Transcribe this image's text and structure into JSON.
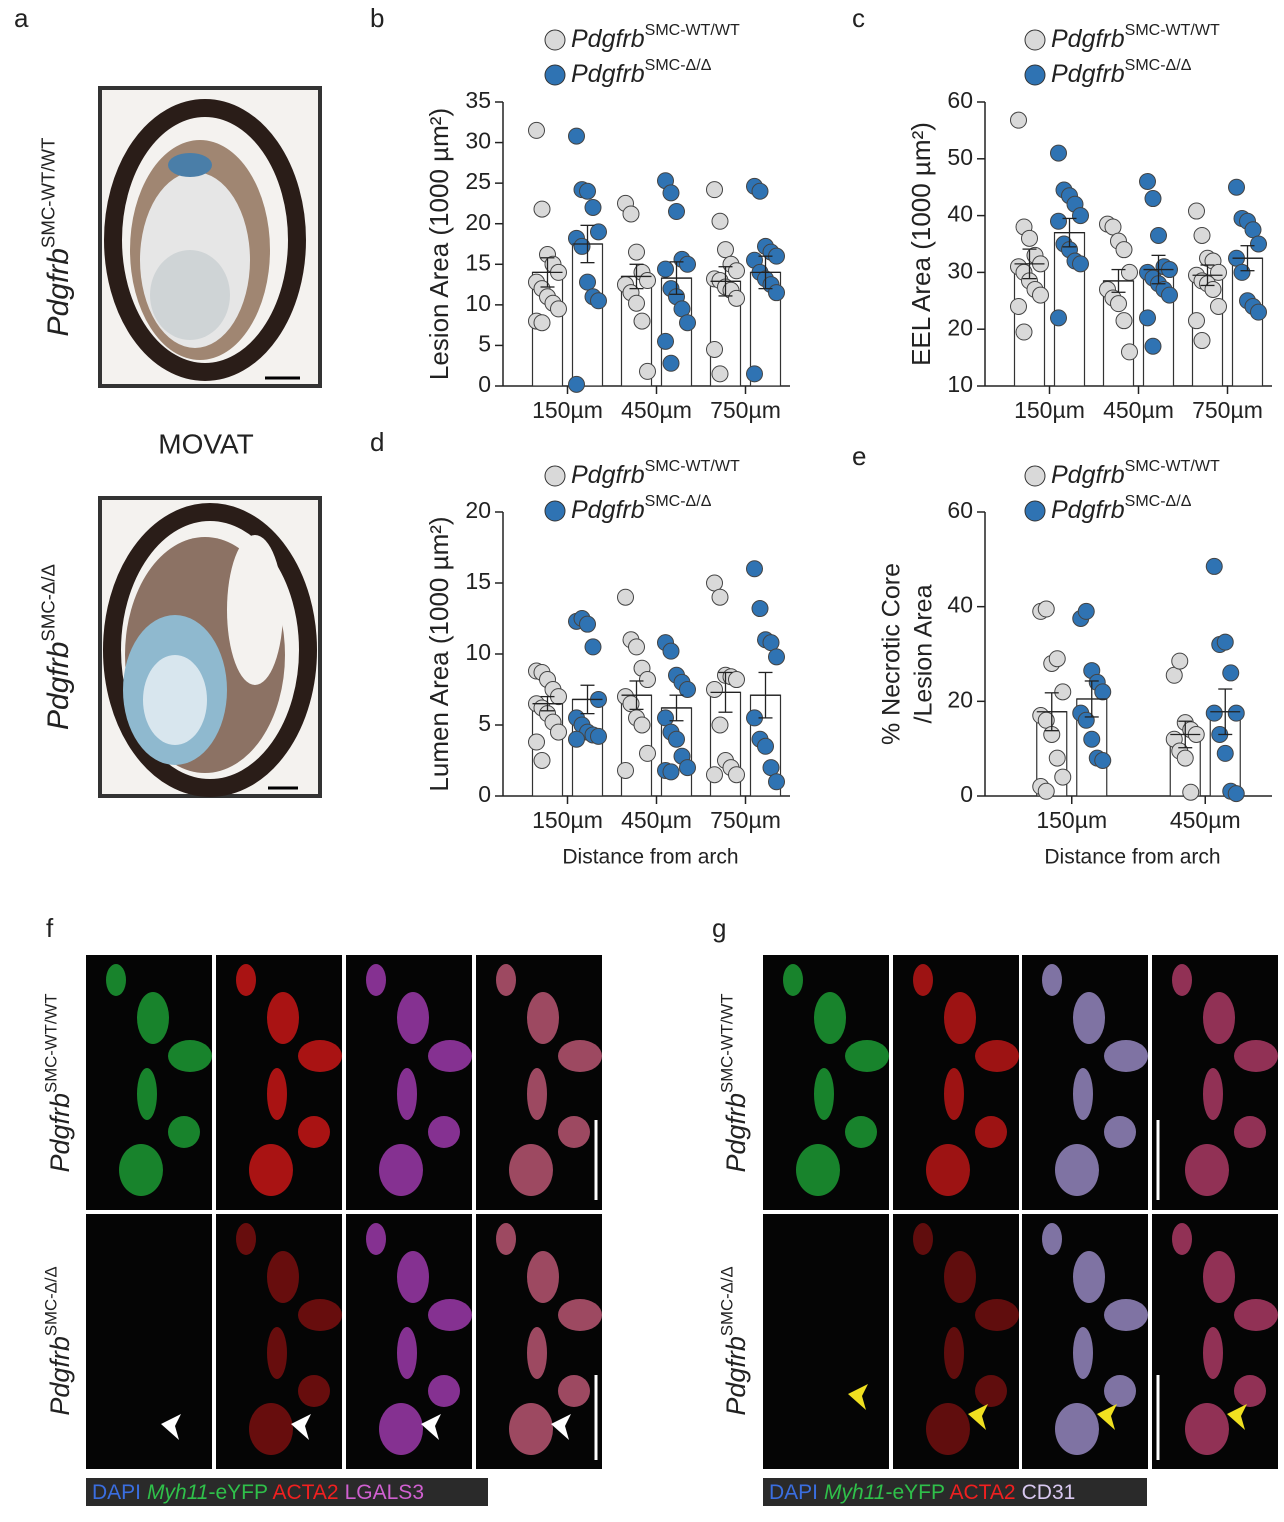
{
  "panel_labels": [
    "a",
    "b",
    "c",
    "d",
    "e",
    "f",
    "g"
  ],
  "genotype": {
    "gene": "Pdgfrb",
    "wt": "SMC-WT/WT",
    "ko": "SMC-Δ/Δ"
  },
  "movat": "MOVAT",
  "stains_f": [
    "DAPI",
    "Myh11",
    "-eYFP",
    "ACTA2",
    "LGALS3"
  ],
  "stains_g": [
    "DAPI",
    "Myh11",
    "-eYFP",
    "ACTA2",
    "CD31"
  ],
  "chart_data": [
    {
      "type": "bar",
      "ylabel": "Lesion Area (1000 µm²)",
      "categories": [
        "150µm",
        "450µm",
        "750µm"
      ],
      "ylim": [
        0,
        35
      ],
      "yticks": [
        0,
        5,
        10,
        15,
        20,
        25,
        30,
        35
      ],
      "series": [
        {
          "name": "Pdgfrb",
          "genotype": "SMC-WT/WT",
          "color": "#d9d9d9",
          "values": [
            14,
            13.5,
            12.9
          ],
          "errors": [
            1.8,
            1.5,
            1.8
          ],
          "points": [
            [
              31.5,
              21.8,
              16.2,
              15,
              14,
              12.8,
              12,
              11,
              10.2,
              9.5,
              8,
              7.8
            ],
            [
              22.5,
              21.2,
              16.5,
              14,
              13,
              12.5,
              11.5,
              10.2,
              8,
              1.8
            ],
            [
              24.2,
              20.3,
              16.8,
              15,
              14.2,
              13.2,
              13,
              12.2,
              11.8,
              10.8,
              4.5,
              1.5
            ]
          ]
        },
        {
          "name": "Pdgfrb",
          "genotype": "SMC-Δ/Δ",
          "color": "#2f73b3",
          "values": [
            17.5,
            13.3,
            14
          ],
          "errors": [
            2.3,
            2,
            2
          ],
          "points": [
            [
              30.8,
              24.2,
              24,
              22,
              19,
              18.2,
              17.2,
              12.8,
              11,
              10.5,
              0.2
            ],
            [
              25.3,
              23.8,
              21.5,
              15.6,
              15,
              14.4,
              12,
              11,
              9.5,
              7.8,
              5.5,
              2.8
            ],
            [
              24.6,
              24,
              17.2,
              16.5,
              16,
              15.5,
              14,
              13.2,
              12.5,
              11.5,
              1.5
            ]
          ]
        }
      ]
    },
    {
      "type": "bar",
      "ylabel": "EEL Area (1000 µm²)",
      "categories": [
        "150µm",
        "450µm",
        "750µm"
      ],
      "ylim": [
        10,
        60
      ],
      "yticks": [
        10,
        20,
        30,
        40,
        50,
        60
      ],
      "series": [
        {
          "name": "Pdgfrb",
          "genotype": "SMC-WT/WT",
          "color": "#d9d9d9",
          "values": [
            31.5,
            28.5,
            29.5
          ],
          "errors": [
            2.6,
            2,
            1.8
          ],
          "points": [
            [
              56.8,
              38,
              36,
              33,
              31.5,
              31,
              30,
              28.5,
              27,
              26,
              24,
              19.5
            ],
            [
              38.5,
              38,
              35.5,
              34,
              30,
              27,
              25.5,
              24.5,
              21.5,
              16
            ],
            [
              40.8,
              36.5,
              32.5,
              32,
              30,
              29.5,
              28.5,
              28,
              27,
              24,
              21.5,
              18
            ]
          ]
        },
        {
          "name": "Pdgfrb",
          "genotype": "SMC-Δ/Δ",
          "color": "#2f73b3",
          "values": [
            37,
            30.5,
            32.5
          ],
          "errors": [
            2.5,
            2.5,
            2.2
          ],
          "points": [
            [
              51,
              44.5,
              43.5,
              42,
              40,
              39,
              35,
              34,
              32,
              31.5,
              22
            ],
            [
              46,
              43,
              36.5,
              31,
              30.5,
              30,
              29,
              28,
              27,
              26,
              22,
              17
            ],
            [
              45,
              39.5,
              39,
              37.5,
              35,
              32.5,
              30,
              25,
              24,
              23
            ]
          ]
        }
      ]
    },
    {
      "type": "bar",
      "ylabel": "Lumen Area (1000 µm²)",
      "xlabel": "Distance from arch",
      "categories": [
        "150µm",
        "450µm",
        "750µm"
      ],
      "ylim": [
        0,
        20
      ],
      "yticks": [
        0,
        5,
        10,
        15,
        20
      ],
      "series": [
        {
          "name": "Pdgfrb",
          "genotype": "SMC-WT/WT",
          "color": "#d9d9d9",
          "values": [
            6.5,
            7.1,
            7.3
          ],
          "errors": [
            0.5,
            1,
            1.4
          ],
          "points": [
            [
              8.8,
              8.7,
              8.2,
              7.5,
              7,
              6.5,
              6.2,
              5.8,
              5.2,
              4.5,
              3.8,
              2.5
            ],
            [
              14,
              11,
              10.5,
              9,
              8.2,
              7,
              6.5,
              5.5,
              5,
              3,
              1.8
            ],
            [
              15,
              14,
              8.5,
              8.4,
              8.2,
              7.5,
              5,
              2.5,
              2,
              1.5,
              1.5
            ]
          ]
        },
        {
          "name": "Pdgfrb",
          "genotype": "SMC-Δ/Δ",
          "color": "#2f73b3",
          "values": [
            6.8,
            6.2,
            7.1
          ],
          "errors": [
            1,
            0.9,
            1.6
          ],
          "points": [
            [
              12.3,
              12.5,
              12.1,
              10.5,
              6.8,
              5.5,
              5,
              4.5,
              4.3,
              4.2,
              4
            ],
            [
              10.8,
              10.2,
              8.5,
              8,
              7.5,
              5.5,
              4.5,
              4,
              2.8,
              2,
              1.8,
              1.7
            ],
            [
              16,
              13.2,
              11,
              10.8,
              9.8,
              5.5,
              4,
              3.5,
              2,
              1
            ]
          ]
        }
      ]
    },
    {
      "type": "bar",
      "ylabel": [
        "% Necrotic Core",
        "/Lesion Area"
      ],
      "xlabel": "Distance from arch",
      "categories": [
        "150µm",
        "450µm"
      ],
      "ylim": [
        0,
        60
      ],
      "yticks": [
        0,
        20,
        40,
        60
      ],
      "series": [
        {
          "name": "Pdgfrb",
          "genotype": "SMC-WT/WT",
          "color": "#d9d9d9",
          "values": [
            17.8,
            13
          ],
          "errors": [
            4,
            2.8
          ],
          "points": [
            [
              39,
              39.5,
              28,
              29,
              22,
              17,
              16,
              13,
              8,
              4,
              2,
              1
            ],
            [
              25.5,
              28.5,
              15.5,
              14,
              13,
              12,
              9.5,
              8,
              0.8
            ]
          ]
        },
        {
          "name": "Pdgfrb",
          "genotype": "SMC-Δ/Δ",
          "color": "#2f73b3",
          "values": [
            20.5,
            17.8
          ],
          "errors": [
            3.8,
            4.8
          ],
          "points": [
            [
              37.5,
              39,
              26.5,
              24,
              22,
              17.5,
              16,
              12,
              8,
              7.5
            ],
            [
              48.5,
              32,
              32.5,
              26,
              17.5,
              17.5,
              13,
              9,
              1,
              0.5
            ]
          ]
        }
      ]
    }
  ]
}
